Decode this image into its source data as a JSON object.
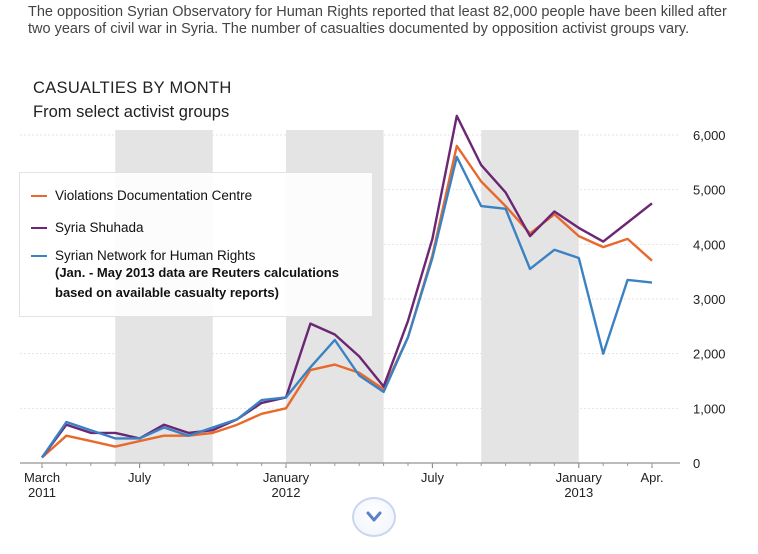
{
  "intro": "The opposition Syrian Observatory for Human Rights reported that least 82,000 people have been killed after two years of civil war in Syria. The number of casualties documented by opposition activist groups vary.",
  "colors": {
    "vdc": "#e8692c",
    "shuhada": "#6b2674",
    "snhr": "#3a82c3",
    "band": "#e4e4e4"
  },
  "legend": {
    "items": [
      {
        "label": "Violations Documentation Centre",
        "color": "#e8692c"
      },
      {
        "label": "Syria Shuhada",
        "color": "#6b2674"
      },
      {
        "label": "Syrian Network for Human Rights",
        "color": "#3a82c3"
      }
    ],
    "note_line1": "(Jan. - May 2013 data are Reuters calculations",
    "note_line2": "based on available casualty reports)"
  },
  "controls": {
    "scroll_icon": "chevron-down-icon"
  },
  "chart_data": {
    "type": "line",
    "title": "CASUALTIES BY MONTH",
    "subtitle": "From select activist groups",
    "x": [
      "2011-03",
      "2011-04",
      "2011-05",
      "2011-06",
      "2011-07",
      "2011-08",
      "2011-09",
      "2011-10",
      "2011-11",
      "2011-12",
      "2012-01",
      "2012-02",
      "2012-03",
      "2012-04",
      "2012-05",
      "2012-06",
      "2012-07",
      "2012-08",
      "2012-09",
      "2012-10",
      "2012-11",
      "2012-12",
      "2013-01",
      "2013-02",
      "2013-03",
      "2013-04"
    ],
    "x_tick_labels": [
      {
        "x": "2011-03",
        "line1": "March",
        "line2": "2011"
      },
      {
        "x": "2011-07",
        "line1": "July",
        "line2": ""
      },
      {
        "x": "2012-01",
        "line1": "January",
        "line2": "2012"
      },
      {
        "x": "2012-07",
        "line1": "July",
        "line2": ""
      },
      {
        "x": "2013-01",
        "line1": "January",
        "line2": "2013"
      },
      {
        "x": "2013-04",
        "line1": "Apr.",
        "line2": ""
      }
    ],
    "y_ticks": [
      "0",
      "1,000",
      "2,000",
      "3,000",
      "4,000",
      "5,000",
      "6,000"
    ],
    "ylim": [
      0,
      6000
    ],
    "shaded_months": [
      [
        "2011-06",
        "2011-10"
      ],
      [
        "2012-01",
        "2012-05"
      ],
      [
        "2012-09",
        "2013-01"
      ]
    ],
    "legend_position": "upper-left",
    "series": [
      {
        "name": "Violations Documentation Centre",
        "color": "#e8692c",
        "values": [
          100,
          500,
          400,
          300,
          400,
          500,
          500,
          550,
          700,
          900,
          1000,
          1700,
          1800,
          1650,
          1350,
          2300,
          3800,
          5800,
          5150,
          4700,
          4200,
          4550,
          4150,
          3950,
          4100,
          3700
        ]
      },
      {
        "name": "Syria Shuhada",
        "color": "#6b2674",
        "values": [
          100,
          700,
          550,
          550,
          450,
          700,
          550,
          600,
          800,
          1100,
          1200,
          2550,
          2350,
          1950,
          1400,
          2600,
          4100,
          6350,
          5450,
          4950,
          4150,
          4600,
          4300,
          4050,
          4400,
          4750
        ]
      },
      {
        "name": "Syrian Network for Human Rights",
        "color": "#3a82c3",
        "values": [
          100,
          750,
          600,
          450,
          450,
          650,
          500,
          650,
          800,
          1150,
          1200,
          1750,
          2250,
          1600,
          1300,
          2300,
          3750,
          5600,
          4700,
          4650,
          3550,
          3900,
          3750,
          2000,
          3350,
          3300
        ]
      }
    ]
  }
}
